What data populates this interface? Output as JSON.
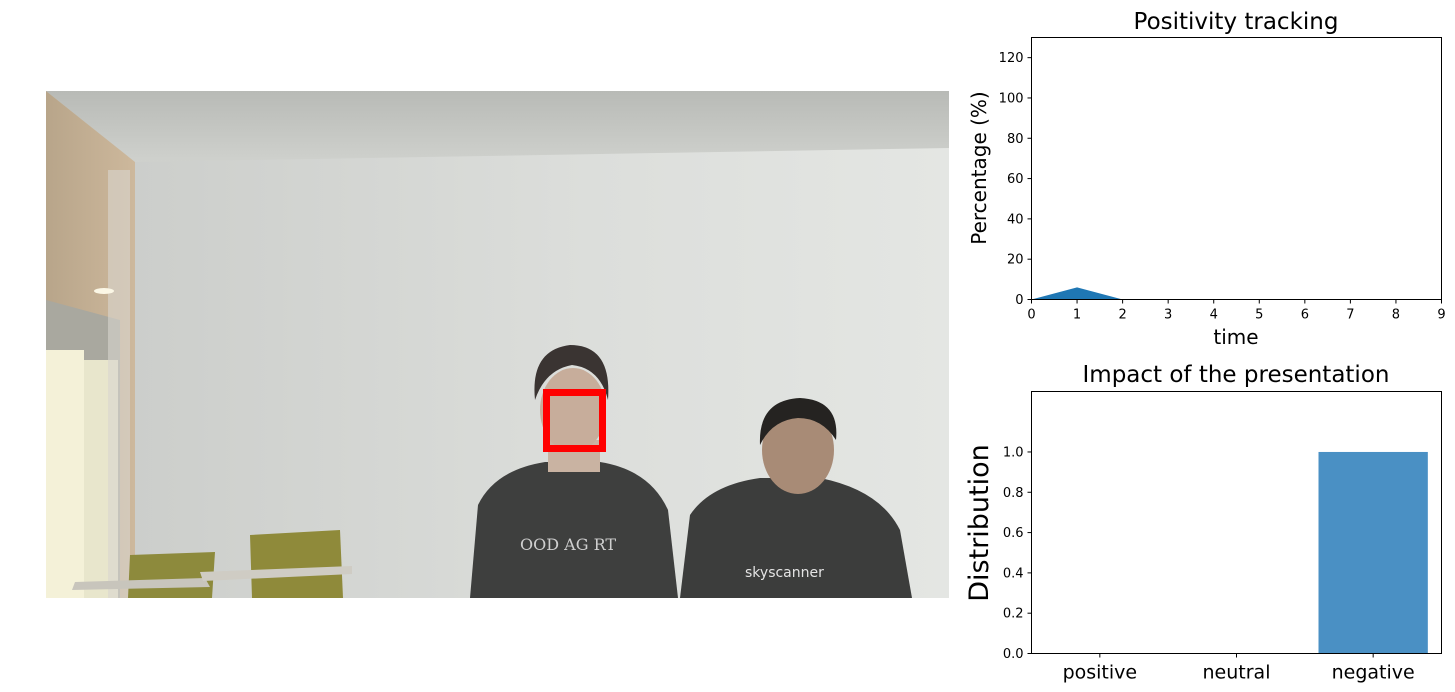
{
  "chart_data": [
    {
      "type": "area",
      "title": "Positivity tracking",
      "xlabel": "time",
      "ylabel": "Percentage (%)",
      "xlim": [
        0,
        9
      ],
      "ylim": [
        0,
        130
      ],
      "x_ticks": [
        0,
        1,
        2,
        3,
        4,
        5,
        6,
        7,
        8,
        9
      ],
      "y_ticks": [
        0,
        20,
        40,
        60,
        80,
        100,
        120
      ],
      "x": [
        0,
        1,
        2
      ],
      "values": [
        0,
        6,
        0
      ],
      "color": "#1f77b4",
      "grid": false
    },
    {
      "type": "bar",
      "title": "Impact of the presentation",
      "xlabel": "",
      "ylabel": "Distribution",
      "categories": [
        "positive",
        "neutral",
        "negative"
      ],
      "values": [
        0,
        0,
        1.0
      ],
      "ylim": [
        0,
        1.3
      ],
      "y_ticks": [
        "0.0",
        "0.2",
        "0.4",
        "0.6",
        "0.8",
        "1.0"
      ],
      "color": "#4a90c4",
      "grid": false
    }
  ],
  "camera_feed": {
    "face_box_color": "#ff0000"
  }
}
